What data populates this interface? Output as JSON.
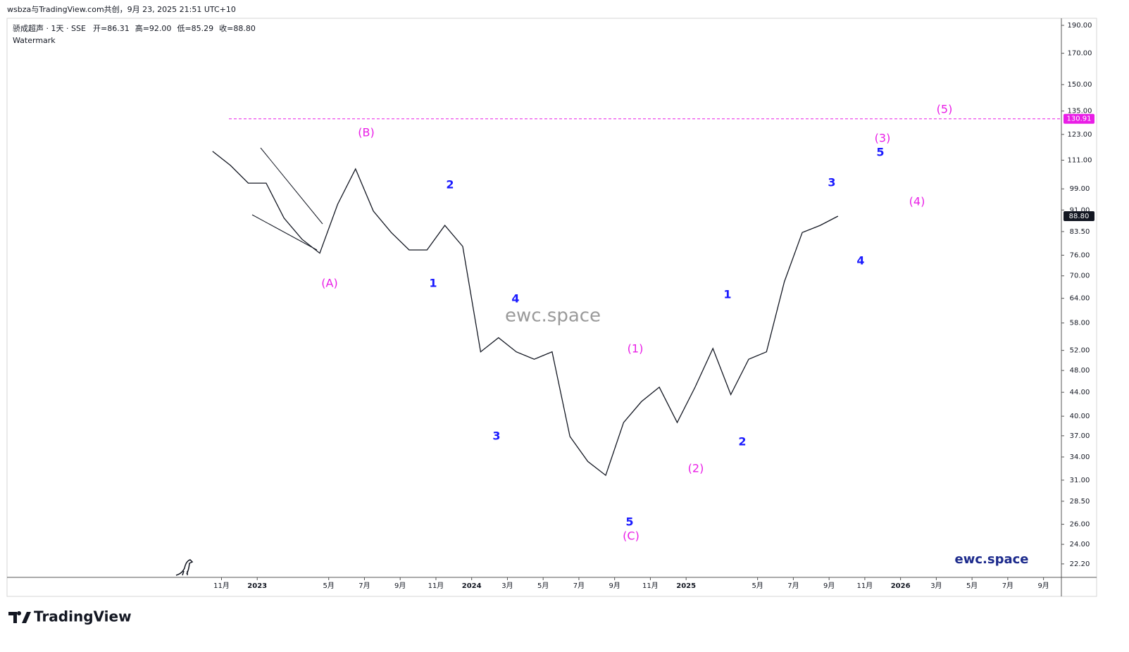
{
  "header": {
    "credit": "wsbza与TradingView.com共创，9月 23, 2025 21:51 UTC+10",
    "brand": "TradingView"
  },
  "chart_data": {
    "type": "line",
    "symbol": "骄成超声 · 1天 · SSE",
    "legend_values": [
      "开=86.31",
      "高=92.00",
      "低=85.29",
      "收=88.80"
    ],
    "subtitle": "Watermark",
    "x": [
      "2022-10",
      "2022-11",
      "2022-12",
      "2023-01",
      "2023-02",
      "2023-03",
      "2023-04",
      "2023-05",
      "2023-06",
      "2023-07",
      "2023-08",
      "2023-09",
      "2023-10",
      "2023-11",
      "2023-12",
      "2024-01",
      "2024-02",
      "2024-03",
      "2024-04",
      "2024-05",
      "2024-06",
      "2024-07",
      "2024-08",
      "2024-09",
      "2024-10",
      "2024-11",
      "2024-12",
      "2025-01",
      "2025-02",
      "2025-03",
      "2025-04",
      "2025-05",
      "2025-06",
      "2025-07",
      "2025-08",
      "2025-09"
    ],
    "series": [
      {
        "color": "#131722",
        "values": [
          115.0,
          108.7,
          101.3,
          101.3,
          88.1,
          81.0,
          76.6,
          93.1,
          107.2,
          90.6,
          83.2,
          77.6,
          77.6,
          85.6,
          78.7,
          51.7,
          54.7,
          51.7,
          50.2,
          51.7,
          36.9,
          33.4,
          31.6,
          39.0,
          42.4,
          44.9,
          39.0,
          44.9,
          52.4,
          43.6,
          50.2,
          51.7,
          68.4,
          83.2,
          85.6,
          88.8
        ]
      }
    ],
    "log_scale": true,
    "ylim": [
      21.04,
      195.4
    ],
    "yticks": [
      {
        "value": 190,
        "label": "190.00"
      },
      {
        "value": 170,
        "label": "170.00"
      },
      {
        "value": 150,
        "label": "150.00"
      },
      {
        "value": 135,
        "label": "135.00"
      },
      {
        "value": 123,
        "label": "123.00"
      },
      {
        "value": 111,
        "label": "111.00"
      },
      {
        "value": 99,
        "label": "99.00"
      },
      {
        "value": 91,
        "label": "91.00"
      },
      {
        "value": 83.5,
        "label": "83.50"
      },
      {
        "value": 76,
        "label": "76.00"
      },
      {
        "value": 70,
        "label": "70.00"
      },
      {
        "value": 64,
        "label": "64.00"
      },
      {
        "value": 58,
        "label": "58.00"
      },
      {
        "value": 52,
        "label": "52.00"
      },
      {
        "value": 48,
        "label": "48.00"
      },
      {
        "value": 44,
        "label": "44.00"
      },
      {
        "value": 40,
        "label": "40.00"
      },
      {
        "value": 37,
        "label": "37.00"
      },
      {
        "value": 34,
        "label": "34.00"
      },
      {
        "value": 31,
        "label": "31.00"
      },
      {
        "value": 28.5,
        "label": "28.50"
      },
      {
        "value": 26,
        "label": "26.00"
      },
      {
        "value": 24,
        "label": "24.00"
      },
      {
        "value": 22.2,
        "label": "22.20"
      }
    ],
    "xlim": [
      "2021-11",
      "2026-10"
    ],
    "xticks": [
      {
        "value": "2022-11",
        "label": "11月"
      },
      {
        "value": "2023-01",
        "label": "2023"
      },
      {
        "value": "2023-05",
        "label": "5月"
      },
      {
        "value": "2023-07",
        "label": "7月"
      },
      {
        "value": "2023-09",
        "label": "9月"
      },
      {
        "value": "2023-11",
        "label": "11月"
      },
      {
        "value": "2024-01",
        "label": "2024"
      },
      {
        "value": "2024-03",
        "label": "3月"
      },
      {
        "value": "2024-05",
        "label": "5月"
      },
      {
        "value": "2024-07",
        "label": "7月"
      },
      {
        "value": "2024-09",
        "label": "9月"
      },
      {
        "value": "2024-11",
        "label": "11月"
      },
      {
        "value": "2025-01",
        "label": "2025"
      },
      {
        "value": "2025-05",
        "label": "5月"
      },
      {
        "value": "2025-07",
        "label": "7月"
      },
      {
        "value": "2025-09",
        "label": "9月"
      },
      {
        "value": "2025-11",
        "label": "11月"
      },
      {
        "value": "2026-01",
        "label": "2026"
      },
      {
        "value": "2026-03",
        "label": "3月"
      },
      {
        "value": "2026-05",
        "label": "5月"
      },
      {
        "value": "2026-07",
        "label": "7月"
      },
      {
        "value": "2026-09",
        "label": "9月"
      }
    ],
    "hline": {
      "value": 130.91,
      "color": "#e91ee6"
    },
    "last_price": {
      "value": 88.8,
      "label": "88.80"
    },
    "annotations": [
      {
        "text": "(A)",
        "color": "#e91ee6"
      },
      {
        "text": "(B)",
        "color": "#e91ee6"
      },
      {
        "text": "1",
        "color": "#1a1aff"
      },
      {
        "text": "2",
        "color": "#1a1aff"
      },
      {
        "text": "3",
        "color": "#1a1aff"
      },
      {
        "text": "4",
        "color": "#1a1aff"
      },
      {
        "text": "5",
        "color": "#1a1aff"
      },
      {
        "text": "(C)",
        "color": "#e91ee6"
      },
      {
        "text": "(1)",
        "color": "#e91ee6"
      },
      {
        "text": "(2)",
        "color": "#e91ee6"
      },
      {
        "text": "1",
        "color": "#1a1aff"
      },
      {
        "text": "2",
        "color": "#1a1aff"
      },
      {
        "text": "3",
        "color": "#1a1aff"
      },
      {
        "text": "4",
        "color": "#1a1aff"
      },
      {
        "text": "5",
        "color": "#1a1aff"
      },
      {
        "text": "(3)",
        "color": "#e91ee6"
      },
      {
        "text": "(4)",
        "color": "#e91ee6"
      },
      {
        "text": "(5)",
        "color": "#e91ee6"
      },
      {
        "text": "ewc.space",
        "color": "#9a9a9a"
      },
      {
        "text": "ewc.space",
        "color": "#1c2a8c"
      }
    ]
  }
}
